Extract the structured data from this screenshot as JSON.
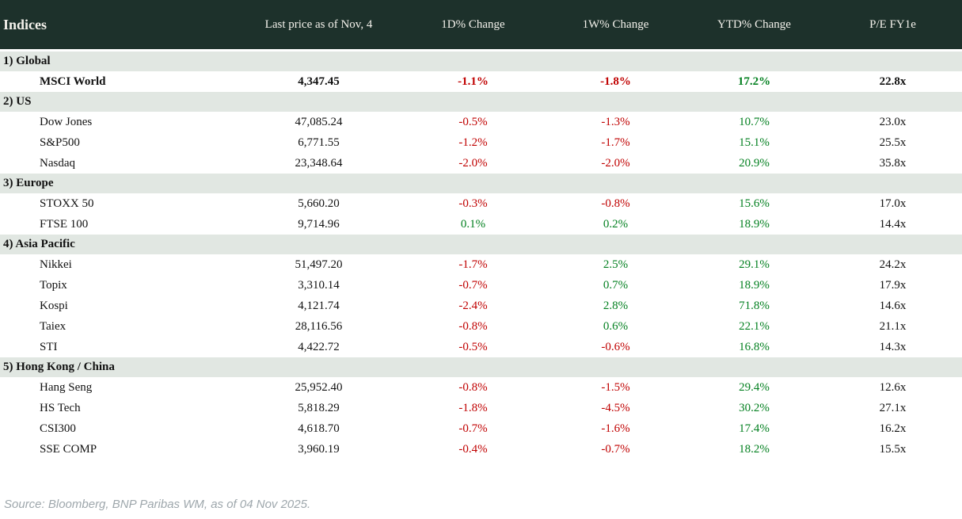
{
  "table": {
    "title": "Indices",
    "columns": [
      "Last price as of Nov, 4",
      "1D% Change",
      "1W% Change",
      "YTD% Change",
      "P/E FY1e"
    ],
    "sections": [
      {
        "label": "1) Global",
        "rows": [
          {
            "name": "MSCI World",
            "price": "4,347.45",
            "d1": "-1.1%",
            "w1": "-1.8%",
            "ytd": "17.2%",
            "pe": "22.8x"
          }
        ]
      },
      {
        "label": "2) US",
        "rows": [
          {
            "name": "Dow Jones",
            "price": "47,085.24",
            "d1": "-0.5%",
            "w1": "-1.3%",
            "ytd": "10.7%",
            "pe": "23.0x"
          },
          {
            "name": "S&P500",
            "price": "6,771.55",
            "d1": "-1.2%",
            "w1": "-1.7%",
            "ytd": "15.1%",
            "pe": "25.5x"
          },
          {
            "name": "Nasdaq",
            "price": "23,348.64",
            "d1": "-2.0%",
            "w1": "-2.0%",
            "ytd": "20.9%",
            "pe": "35.8x"
          }
        ]
      },
      {
        "label": "3) Europe",
        "rows": [
          {
            "name": "STOXX 50",
            "price": "5,660.20",
            "d1": "-0.3%",
            "w1": "-0.8%",
            "ytd": "15.6%",
            "pe": "17.0x"
          },
          {
            "name": "FTSE 100",
            "price": "9,714.96",
            "d1": "0.1%",
            "w1": "0.2%",
            "ytd": "18.9%",
            "pe": "14.4x"
          }
        ]
      },
      {
        "label": "4) Asia Pacific",
        "rows": [
          {
            "name": "Nikkei",
            "price": "51,497.20",
            "d1": "-1.7%",
            "w1": "2.5%",
            "ytd": "29.1%",
            "pe": "24.2x"
          },
          {
            "name": "Topix",
            "price": "3,310.14",
            "d1": "-0.7%",
            "w1": "0.7%",
            "ytd": "18.9%",
            "pe": "17.9x"
          },
          {
            "name": "Kospi",
            "price": "4,121.74",
            "d1": "-2.4%",
            "w1": "2.8%",
            "ytd": "71.8%",
            "pe": "14.6x"
          },
          {
            "name": "Taiex",
            "price": "28,116.56",
            "d1": "-0.8%",
            "w1": "0.6%",
            "ytd": "22.1%",
            "pe": "21.1x"
          },
          {
            "name": "STI",
            "price": "4,422.72",
            "d1": "-0.5%",
            "w1": "-0.6%",
            "ytd": "16.8%",
            "pe": "14.3x"
          }
        ]
      },
      {
        "label": "5) Hong Kong / China",
        "rows": [
          {
            "name": "Hang Seng",
            "price": "25,952.40",
            "d1": "-0.8%",
            "w1": "-1.5%",
            "ytd": "29.4%",
            "pe": "12.6x"
          },
          {
            "name": "HS Tech",
            "price": "5,818.29",
            "d1": "-1.8%",
            "w1": "-4.5%",
            "ytd": "30.2%",
            "pe": "27.1x"
          },
          {
            "name": "CSI300",
            "price": "4,618.70",
            "d1": "-0.7%",
            "w1": "-1.6%",
            "ytd": "17.4%",
            "pe": "16.2x"
          },
          {
            "name": "SSE COMP",
            "price": "3,960.19",
            "d1": "-0.4%",
            "w1": "-0.7%",
            "ytd": "18.2%",
            "pe": "15.5x"
          }
        ]
      }
    ]
  },
  "footer": {
    "source": "Source: Bloomberg, BNP Paribas WM, as of 04 Nov 2025."
  },
  "colors": {
    "header_bg": "#1d312b",
    "header_text": "#f4f2ec",
    "section_bg": "#e1e7e2",
    "negative": "#c00000",
    "positive": "#038020",
    "body_text": "#111111",
    "source_text": "#9ea7ac"
  },
  "chart_data": {
    "type": "table",
    "title": "Indices",
    "columns": [
      "Indices",
      "Last price as of Nov, 4",
      "1D% Change",
      "1W% Change",
      "YTD% Change",
      "P/E FY1e"
    ],
    "sections": [
      {
        "section": "1) Global",
        "rows": [
          [
            "MSCI World",
            4347.45,
            -1.1,
            -1.8,
            17.2,
            "22.8x"
          ]
        ]
      },
      {
        "section": "2) US",
        "rows": [
          [
            "Dow Jones",
            47085.24,
            -0.5,
            -1.3,
            10.7,
            "23.0x"
          ],
          [
            "S&P500",
            6771.55,
            -1.2,
            -1.7,
            15.1,
            "25.5x"
          ],
          [
            "Nasdaq",
            23348.64,
            -2.0,
            -2.0,
            20.9,
            "35.8x"
          ]
        ]
      },
      {
        "section": "3) Europe",
        "rows": [
          [
            "STOXX 50",
            5660.2,
            -0.3,
            -0.8,
            15.6,
            "17.0x"
          ],
          [
            "FTSE 100",
            9714.96,
            0.1,
            0.2,
            18.9,
            "14.4x"
          ]
        ]
      },
      {
        "section": "4) Asia Pacific",
        "rows": [
          [
            "Nikkei",
            51497.2,
            -1.7,
            2.5,
            29.1,
            "24.2x"
          ],
          [
            "Topix",
            3310.14,
            -0.7,
            0.7,
            18.9,
            "17.9x"
          ],
          [
            "Kospi",
            4121.74,
            -2.4,
            2.8,
            71.8,
            "14.6x"
          ],
          [
            "Taiex",
            28116.56,
            -0.8,
            0.6,
            22.1,
            "21.1x"
          ],
          [
            "STI",
            4422.72,
            -0.5,
            -0.6,
            16.8,
            "14.3x"
          ]
        ]
      },
      {
        "section": "5) Hong Kong / China",
        "rows": [
          [
            "Hang Seng",
            25952.4,
            -0.8,
            -1.5,
            29.4,
            "12.6x"
          ],
          [
            "HS Tech",
            5818.29,
            -1.8,
            -4.5,
            30.2,
            "27.1x"
          ],
          [
            "CSI300",
            4618.7,
            -0.7,
            -1.6,
            17.4,
            "16.2x"
          ],
          [
            "SSE COMP",
            3960.19,
            -0.4,
            -0.7,
            18.2,
            "15.5x"
          ]
        ]
      }
    ],
    "value_color_rule": "negative values red, positive values green; prices and P/E black"
  }
}
